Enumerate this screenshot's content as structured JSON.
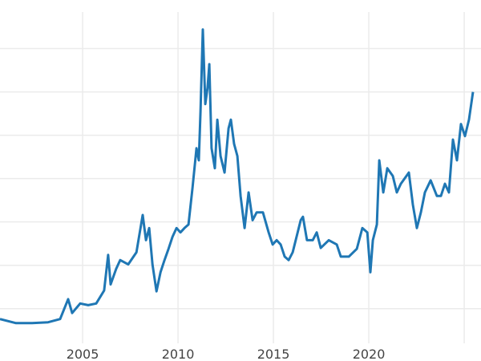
{
  "chart_data": {
    "type": "line",
    "title": "",
    "xlabel": "",
    "ylabel": "",
    "xlim": [
      2000.67,
      2025.88
    ],
    "ylim": [
      1.0,
      40.6
    ],
    "x_ticks": [
      2005,
      2010,
      2015,
      2020,
      2025
    ],
    "x_tick_labels": [
      "2005",
      "2010",
      "2015",
      "2020",
      ""
    ],
    "y_gridlines": [
      5,
      10,
      15,
      20,
      25,
      30,
      35
    ],
    "grid": true,
    "line_color": "#1f77b4",
    "grid_color": "#ebebeb",
    "series": [
      {
        "x": [
          2000.67,
          2001.51,
          2002.35,
          2003.19,
          2003.82,
          2004.24,
          2004.45,
          2004.87,
          2005.29,
          2005.71,
          2006.13,
          2006.34,
          2006.47,
          2006.76,
          2006.97,
          2007.39,
          2007.82,
          2008.15,
          2008.32,
          2008.49,
          2008.66,
          2008.87,
          2009.08,
          2009.29,
          2009.5,
          2009.71,
          2009.92,
          2010.13,
          2010.34,
          2010.55,
          2010.76,
          2010.97,
          2011.09,
          2011.18,
          2011.3,
          2011.43,
          2011.55,
          2011.64,
          2011.76,
          2011.93,
          2012.06,
          2012.23,
          2012.44,
          2012.65,
          2012.77,
          2012.94,
          2013.11,
          2013.28,
          2013.49,
          2013.7,
          2013.91,
          2014.12,
          2014.45,
          2014.75,
          2014.96,
          2015.17,
          2015.38,
          2015.59,
          2015.8,
          2016.01,
          2016.43,
          2016.55,
          2016.76,
          2017.06,
          2017.27,
          2017.48,
          2017.9,
          2018.32,
          2018.53,
          2018.95,
          2019.37,
          2019.66,
          2019.92,
          2020.08,
          2020.21,
          2020.42,
          2020.55,
          2020.76,
          2020.97,
          2021.26,
          2021.47,
          2021.68,
          2022.1,
          2022.31,
          2022.52,
          2022.73,
          2022.94,
          2023.24,
          2023.57,
          2023.78,
          2023.99,
          2024.2,
          2024.41,
          2024.62,
          2024.83,
          2025.04,
          2025.25,
          2025.46
        ],
        "y": [
          3.8,
          3.33,
          3.33,
          3.43,
          3.8,
          6.1,
          4.5,
          5.6,
          5.4,
          5.6,
          7.1,
          11.2,
          7.8,
          9.6,
          10.6,
          10.1,
          11.5,
          15.8,
          12.9,
          14.3,
          10.1,
          7.0,
          9.2,
          10.6,
          11.9,
          13.3,
          14.3,
          13.8,
          14.3,
          14.7,
          18.9,
          23.5,
          22.1,
          27.7,
          37.2,
          28.6,
          30.5,
          33.2,
          23.5,
          21.2,
          26.8,
          22.6,
          20.7,
          25.8,
          26.8,
          24.0,
          22.6,
          18.0,
          14.3,
          18.4,
          15.2,
          16.1,
          16.1,
          13.8,
          12.4,
          12.9,
          12.4,
          11.0,
          10.6,
          11.5,
          15.2,
          15.6,
          12.9,
          12.9,
          13.8,
          12.0,
          12.9,
          12.4,
          11.0,
          11.0,
          11.9,
          14.3,
          13.8,
          9.2,
          12.9,
          14.7,
          22.1,
          18.4,
          21.2,
          20.3,
          18.4,
          19.4,
          20.7,
          17.0,
          14.3,
          16.1,
          18.4,
          19.8,
          18.0,
          18.0,
          19.4,
          18.4,
          24.5,
          22.1,
          26.3,
          24.9,
          26.8,
          30.0
        ]
      }
    ]
  }
}
